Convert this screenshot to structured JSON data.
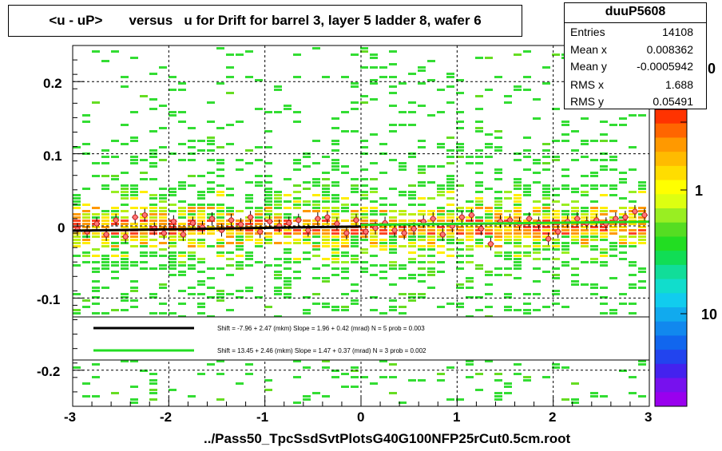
{
  "title": "<u - uP>       versus   u for Drift for barrel 3, layer 5 ladder 8, wafer 6",
  "footer": "../Pass50_TpcSsdSvtPlotsG40G100NFP25rCut0.5cm.root",
  "stats": {
    "name": "duuP5608",
    "rows": [
      {
        "label": "Entries",
        "value": "14108"
      },
      {
        "label": "Mean x",
        "value": "0.008362"
      },
      {
        "label": "Mean y",
        "value": "-0.0005942"
      },
      {
        "label": "RMS x",
        "value": "1.688"
      },
      {
        "label": "RMS y",
        "value": "0.05491"
      }
    ]
  },
  "colorbar": {
    "tick_labels": [
      "0",
      "1",
      "10"
    ]
  },
  "fit_legend": [
    {
      "text": "Shift =    -7.96 + 2.47 (mkm) Slope =    1.96 + 0.42 (mrad)  N = 5 prob = 0.003",
      "color": "#000000"
    },
    {
      "text": "Shift =    13.45 + 2.46 (mkm) Slope =    1.47 + 0.37 (mrad)  N = 3 prob = 0.002",
      "color": "#22dd22"
    }
  ],
  "chart_data": {
    "type": "heatmap",
    "x_label": "",
    "y_label": "",
    "xlim": [
      -3,
      3
    ],
    "ylim": [
      -0.25,
      0.25
    ],
    "x_ticks": [
      -3,
      -2,
      -1,
      0,
      1,
      2,
      3
    ],
    "x_tick_labels": [
      "-3",
      "-2",
      "-1",
      "0",
      "1",
      "2",
      "3"
    ],
    "y_ticks": [
      -0.2,
      -0.1,
      0,
      0.1,
      0.2
    ],
    "y_tick_labels": [
      "-0.2",
      "-0.1",
      "0",
      "0.1",
      "0.2"
    ],
    "grid": true,
    "profile_points": {
      "x": [
        -2.95,
        -2.85,
        -2.75,
        -2.65,
        -2.55,
        -2.45,
        -2.35,
        -2.25,
        -2.15,
        -2.05,
        -1.95,
        -1.85,
        -1.75,
        -1.65,
        -1.55,
        -1.45,
        -1.35,
        -1.25,
        -1.15,
        -1.05,
        -0.95,
        -0.85,
        -0.75,
        -0.65,
        -0.55,
        -0.45,
        -0.35,
        -0.25,
        -0.15,
        -0.05,
        0.05,
        0.15,
        0.25,
        0.35,
        0.45,
        0.55,
        0.65,
        0.75,
        0.85,
        0.95,
        1.05,
        1.15,
        1.25,
        1.35,
        1.45,
        1.55,
        1.65,
        1.75,
        1.85,
        1.95,
        2.05,
        2.15,
        2.25,
        2.35,
        2.45,
        2.55,
        2.65,
        2.75,
        2.85,
        2.95
      ],
      "y": [
        -0.005,
        -0.008,
        0.003,
        -0.012,
        0.008,
        -0.015,
        0.012,
        0.015,
        -0.004,
        -0.01,
        0.006,
        -0.012,
        0.004,
        -0.002,
        0.01,
        -0.006,
        0.008,
        0.002,
        0.012,
        -0.008,
        0.006,
        0.0,
        0.004,
        0.008,
        -0.006,
        0.01,
        0.012,
        0.003,
        -0.01,
        0.008,
        -0.008,
        -0.003,
        0.004,
        -0.006,
        -0.01,
        -0.004,
        0.006,
        0.01,
        -0.012,
        0.0,
        0.012,
        0.015,
        -0.004,
        -0.025,
        0.006,
        0.008,
        0.003,
        0.01,
        0.004,
        -0.018,
        -0.008,
        0.006,
        0.01,
        0.004,
        0.008,
        0.003,
        0.01,
        0.012,
        0.02,
        0.015
      ]
    },
    "fits": [
      {
        "name": "fit-black",
        "color": "#000000",
        "x_range": [
          -3,
          0
        ],
        "shift_um": -7.96,
        "slope_mrad": 1.96
      },
      {
        "name": "fit-green",
        "color": "#22dd22",
        "x_range": [
          0,
          3
        ],
        "shift_um": 13.45,
        "slope_mrad": 1.47
      }
    ]
  }
}
